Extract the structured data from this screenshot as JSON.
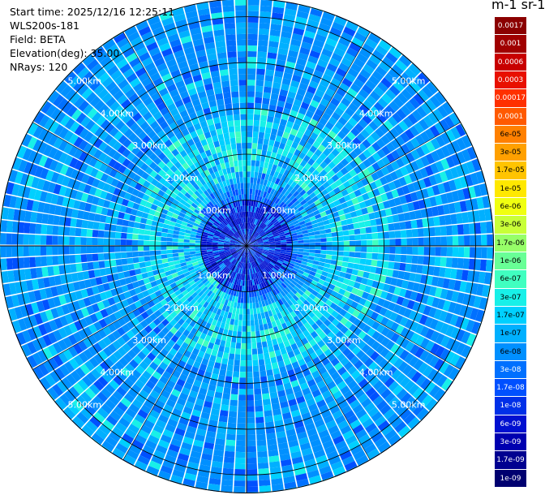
{
  "header": {
    "start_time": "Start time: 2025/12/16 12:25:11",
    "instrument": "WLS200s-181",
    "field": "Field: BETA",
    "elevation": "Elevation(deg): 35.00",
    "nrays": "NRays: 120"
  },
  "colorbar": {
    "title": "m-1 sr-1",
    "labels": [
      "0.0017",
      "0.001",
      "0.0006",
      "0.0003",
      "0.00017",
      "0.0001",
      "6e-05",
      "3e-05",
      "1.7e-05",
      "1e-05",
      "6e-06",
      "3e-06",
      "1.7e-06",
      "1e-06",
      "6e-07",
      "3e-07",
      "1.7e-07",
      "1e-07",
      "6e-08",
      "3e-08",
      "1.7e-08",
      "1e-08",
      "6e-09",
      "3e-09",
      "1.7e-09",
      "1e-09"
    ],
    "colors": [
      "#8b0000",
      "#a00000",
      "#c80000",
      "#e81000",
      "#ff3000",
      "#ff5a00",
      "#ff8000",
      "#ffa000",
      "#ffc400",
      "#ffe800",
      "#f0ff10",
      "#c8ff38",
      "#96ff68",
      "#68ff96",
      "#40ffc0",
      "#18f0e8",
      "#00d0ff",
      "#00b0ff",
      "#0090ff",
      "#0070ff",
      "#0050ff",
      "#0030e8",
      "#0010d0",
      "#0000b0",
      "#000090",
      "#000070"
    ]
  },
  "chart_data": {
    "type": "heatmap",
    "title": "",
    "projection": "polar",
    "field": "BETA",
    "units": "m-1 sr-1",
    "n_rays": 120,
    "elevation_deg": 35.0,
    "range_rings_km": [
      1.0,
      2.0,
      3.0,
      4.0,
      5.0
    ],
    "range_ring_labels": [
      "1.00km",
      "2.00km",
      "3.00km",
      "4.00km",
      "5.00km"
    ],
    "max_range_km": 5.4,
    "grid": true
  }
}
